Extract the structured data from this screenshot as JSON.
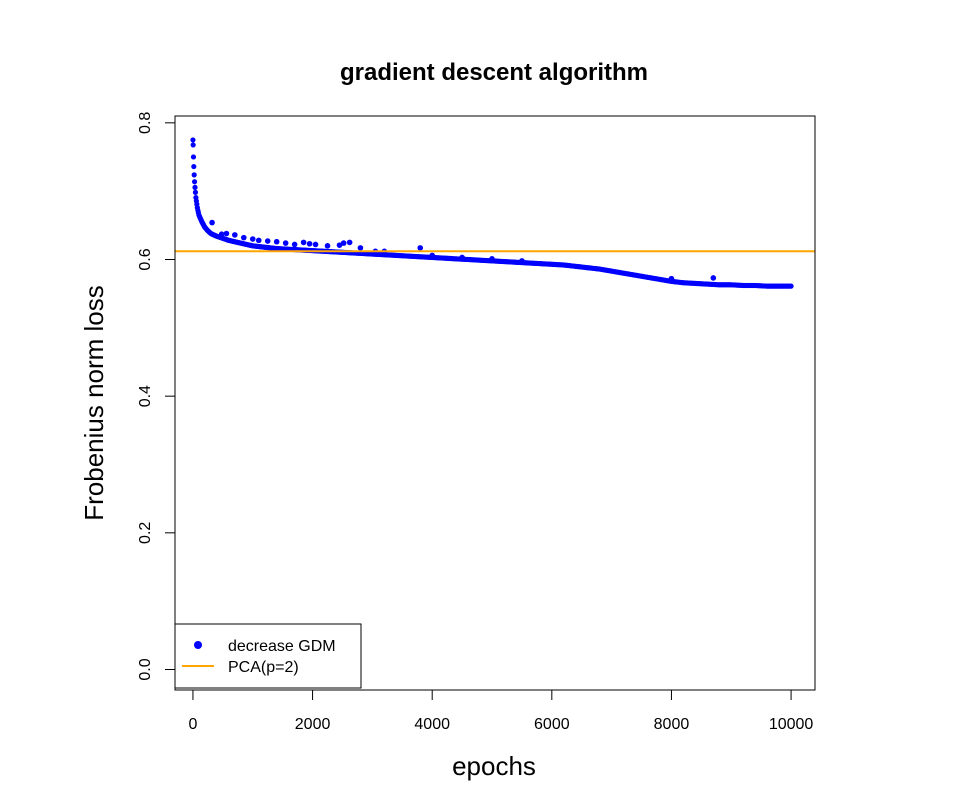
{
  "chart_data": {
    "type": "scatter",
    "title": "gradient descent algorithm",
    "xlabel": "epochs",
    "ylabel": "Frobenius norm loss",
    "xlim": [
      -300,
      10400
    ],
    "ylim": [
      -0.03,
      0.81
    ],
    "x_ticks": [
      0,
      2000,
      4000,
      6000,
      8000,
      10000
    ],
    "y_ticks": [
      0.0,
      0.2,
      0.4,
      0.6,
      0.8
    ],
    "x_tick_labels": [
      "0",
      "2000",
      "4000",
      "6000",
      "8000",
      "10000"
    ],
    "y_tick_labels": [
      "0.0",
      "0.2",
      "0.4",
      "0.6",
      "0.8"
    ],
    "grid": false,
    "legend_position": "bottom-left",
    "series": [
      {
        "name": "decrease GDM",
        "kind": "points",
        "color": "#0000ff",
        "x": [
          0,
          5,
          10,
          20,
          30,
          50,
          75,
          100,
          150,
          200,
          250,
          300,
          400,
          500,
          600,
          700,
          800,
          900,
          1000,
          1200,
          1400,
          1600,
          1800,
          2000,
          2200,
          2400,
          2600,
          2800,
          3000,
          3200,
          3400,
          3600,
          3800,
          4000,
          4200,
          4400,
          4600,
          4800,
          5000,
          5200,
          5400,
          5600,
          5800,
          6000,
          6200,
          6400,
          6600,
          6800,
          7000,
          7200,
          7400,
          7600,
          7800,
          8000,
          8200,
          8400,
          8600,
          8800,
          9000,
          9200,
          9400,
          9600,
          9800,
          10000
        ],
        "y": [
          0.775,
          0.765,
          0.745,
          0.725,
          0.71,
          0.69,
          0.675,
          0.665,
          0.655,
          0.647,
          0.642,
          0.638,
          0.634,
          0.631,
          0.628,
          0.626,
          0.624,
          0.622,
          0.62,
          0.618,
          0.616,
          0.615,
          0.614,
          0.613,
          0.612,
          0.611,
          0.61,
          0.609,
          0.608,
          0.607,
          0.606,
          0.605,
          0.604,
          0.603,
          0.602,
          0.601,
          0.6,
          0.599,
          0.598,
          0.597,
          0.596,
          0.595,
          0.594,
          0.593,
          0.592,
          0.59,
          0.588,
          0.586,
          0.583,
          0.58,
          0.577,
          0.574,
          0.571,
          0.568,
          0.566,
          0.565,
          0.564,
          0.563,
          0.563,
          0.562,
          0.562,
          0.561,
          0.561,
          0.561
        ]
      },
      {
        "name": "PCA(p=2)",
        "kind": "hline",
        "color": "#ffa500",
        "y": 0.612
      }
    ],
    "outliers": {
      "x": [
        320,
        480,
        560,
        700,
        850,
        1000,
        1100,
        1250,
        1400,
        1550,
        1700,
        1850,
        1950,
        2050,
        2250,
        2450,
        2520,
        2620,
        2800,
        3050,
        3200,
        3800,
        4000,
        4500,
        5000,
        5500,
        8000,
        8700
      ],
      "y": [
        0.654,
        0.637,
        0.638,
        0.636,
        0.632,
        0.63,
        0.628,
        0.627,
        0.626,
        0.624,
        0.622,
        0.625,
        0.623,
        0.622,
        0.62,
        0.621,
        0.624,
        0.625,
        0.617,
        0.612,
        0.612,
        0.617,
        0.606,
        0.603,
        0.601,
        0.598,
        0.572,
        0.573
      ]
    }
  }
}
